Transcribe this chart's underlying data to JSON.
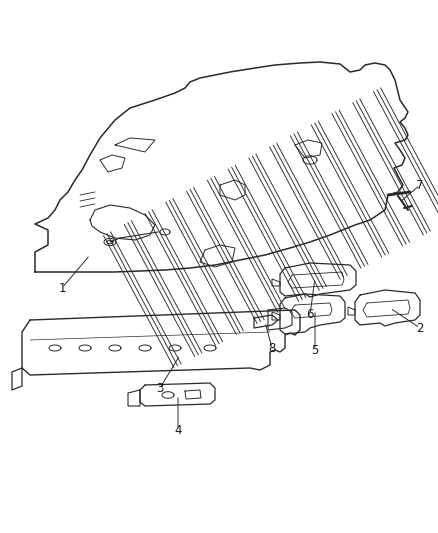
{
  "background_color": "#ffffff",
  "line_color": "#2a2a2a",
  "line_width": 1.0,
  "label_color": "#1a1a1a",
  "label_fontsize": 8.5
}
